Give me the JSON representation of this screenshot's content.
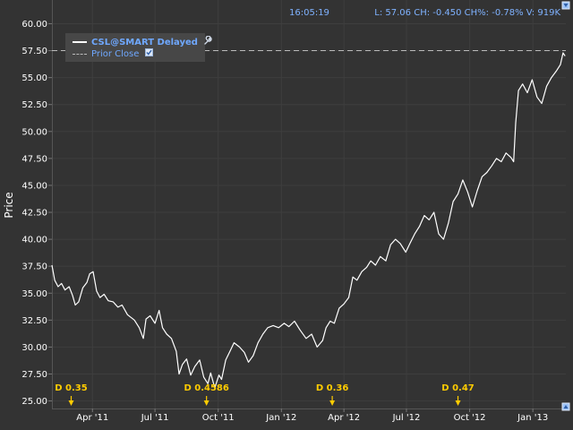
{
  "header": {
    "time": "16:05:19",
    "quote": "L: 57.06 CH: -0.450 CH%: -0.78% V: 919K"
  },
  "legend": {
    "series_label": "CSL@SMART Delayed",
    "prior_close_label": "Prior Close",
    "series_icon": "wrench-icon",
    "prior_close_icon": "checkbox-checked-icon"
  },
  "colors": {
    "background": "#333333",
    "grid": "#3e3e3e",
    "price_line": "#ffffff",
    "prior_close_line": "#bbbbbb",
    "dividend_marker": "#ffcc00",
    "header_text": "#7fb2ff"
  },
  "chart_data": {
    "type": "line",
    "ylabel": "Price",
    "xlabel": "",
    "ylim": [
      24.3,
      62.2
    ],
    "yticks": [
      25.0,
      27.5,
      30.0,
      32.5,
      35.0,
      37.5,
      40.0,
      42.5,
      45.0,
      47.5,
      50.0,
      52.5,
      55.0,
      57.5,
      60.0
    ],
    "x_range": [
      "2011-02-01",
      "2013-02-18"
    ],
    "x_ticks": [
      {
        "date": "2011-04-01",
        "label": "Apr '11"
      },
      {
        "date": "2011-07-01",
        "label": "Jul '11"
      },
      {
        "date": "2011-10-01",
        "label": "Oct '11"
      },
      {
        "date": "2012-01-01",
        "label": "Jan '12"
      },
      {
        "date": "2012-04-01",
        "label": "Apr '12"
      },
      {
        "date": "2012-07-01",
        "label": "Jul '12"
      },
      {
        "date": "2012-10-01",
        "label": "Oct '12"
      },
      {
        "date": "2013-01-01",
        "label": "Jan '13"
      }
    ],
    "prior_close": 57.5,
    "grid": true,
    "legend_position": "top-left",
    "series": [
      {
        "name": "CSL@SMART Delayed",
        "points": [
          [
            "2011-02-01",
            37.6
          ],
          [
            "2011-02-05",
            36.2
          ],
          [
            "2011-02-10",
            35.6
          ],
          [
            "2011-02-15",
            35.9
          ],
          [
            "2011-02-20",
            35.3
          ],
          [
            "2011-02-26",
            35.6
          ],
          [
            "2011-03-03",
            34.8
          ],
          [
            "2011-03-07",
            33.9
          ],
          [
            "2011-03-12",
            34.2
          ],
          [
            "2011-03-18",
            35.5
          ],
          [
            "2011-03-24",
            36.0
          ],
          [
            "2011-03-28",
            36.8
          ],
          [
            "2011-04-02",
            37.0
          ],
          [
            "2011-04-07",
            35.2
          ],
          [
            "2011-04-12",
            34.6
          ],
          [
            "2011-04-18",
            34.9
          ],
          [
            "2011-04-24",
            34.3
          ],
          [
            "2011-05-01",
            34.2
          ],
          [
            "2011-05-08",
            33.7
          ],
          [
            "2011-05-14",
            33.9
          ],
          [
            "2011-05-22",
            33.0
          ],
          [
            "2011-06-01",
            32.5
          ],
          [
            "2011-06-08",
            31.8
          ],
          [
            "2011-06-14",
            30.8
          ],
          [
            "2011-06-18",
            32.6
          ],
          [
            "2011-06-24",
            32.9
          ],
          [
            "2011-07-01",
            32.2
          ],
          [
            "2011-07-07",
            33.4
          ],
          [
            "2011-07-12",
            31.8
          ],
          [
            "2011-07-18",
            31.2
          ],
          [
            "2011-07-25",
            30.8
          ],
          [
            "2011-08-01",
            29.6
          ],
          [
            "2011-08-05",
            27.5
          ],
          [
            "2011-08-10",
            28.4
          ],
          [
            "2011-08-16",
            28.9
          ],
          [
            "2011-08-22",
            27.4
          ],
          [
            "2011-08-28",
            28.2
          ],
          [
            "2011-09-04",
            28.8
          ],
          [
            "2011-09-10",
            27.2
          ],
          [
            "2011-09-16",
            26.6
          ],
          [
            "2011-09-20",
            27.6
          ],
          [
            "2011-09-26",
            26.2
          ],
          [
            "2011-10-02",
            27.4
          ],
          [
            "2011-10-06",
            27.0
          ],
          [
            "2011-10-12",
            28.8
          ],
          [
            "2011-10-18",
            29.6
          ],
          [
            "2011-10-24",
            30.4
          ],
          [
            "2011-11-01",
            30.0
          ],
          [
            "2011-11-08",
            29.5
          ],
          [
            "2011-11-14",
            28.6
          ],
          [
            "2011-11-21",
            29.2
          ],
          [
            "2011-11-28",
            30.4
          ],
          [
            "2011-12-05",
            31.2
          ],
          [
            "2011-12-12",
            31.8
          ],
          [
            "2011-12-20",
            32.0
          ],
          [
            "2011-12-28",
            31.8
          ],
          [
            "2012-01-05",
            32.2
          ],
          [
            "2012-01-12",
            31.9
          ],
          [
            "2012-01-20",
            32.4
          ],
          [
            "2012-01-28",
            31.6
          ],
          [
            "2012-02-06",
            30.8
          ],
          [
            "2012-02-14",
            31.2
          ],
          [
            "2012-02-22",
            30.0
          ],
          [
            "2012-03-01",
            30.6
          ],
          [
            "2012-03-06",
            31.8
          ],
          [
            "2012-03-12",
            32.4
          ],
          [
            "2012-03-18",
            32.2
          ],
          [
            "2012-03-25",
            33.6
          ],
          [
            "2012-04-01",
            34.0
          ],
          [
            "2012-04-08",
            34.6
          ],
          [
            "2012-04-14",
            36.5
          ],
          [
            "2012-04-20",
            36.2
          ],
          [
            "2012-04-27",
            37.0
          ],
          [
            "2012-05-04",
            37.4
          ],
          [
            "2012-05-10",
            38.0
          ],
          [
            "2012-05-17",
            37.6
          ],
          [
            "2012-05-24",
            38.4
          ],
          [
            "2012-06-01",
            38.0
          ],
          [
            "2012-06-08",
            39.5
          ],
          [
            "2012-06-15",
            40.0
          ],
          [
            "2012-06-22",
            39.6
          ],
          [
            "2012-06-30",
            38.8
          ],
          [
            "2012-07-06",
            39.6
          ],
          [
            "2012-07-13",
            40.5
          ],
          [
            "2012-07-20",
            41.2
          ],
          [
            "2012-07-27",
            42.2
          ],
          [
            "2012-08-03",
            41.8
          ],
          [
            "2012-08-10",
            42.5
          ],
          [
            "2012-08-17",
            40.5
          ],
          [
            "2012-08-24",
            40.0
          ],
          [
            "2012-08-31",
            41.5
          ],
          [
            "2012-09-07",
            43.5
          ],
          [
            "2012-09-14",
            44.2
          ],
          [
            "2012-09-21",
            45.5
          ],
          [
            "2012-09-28",
            44.4
          ],
          [
            "2012-10-05",
            43.0
          ],
          [
            "2012-10-12",
            44.5
          ],
          [
            "2012-10-19",
            45.8
          ],
          [
            "2012-10-26",
            46.2
          ],
          [
            "2012-11-02",
            46.8
          ],
          [
            "2012-11-09",
            47.5
          ],
          [
            "2012-11-16",
            47.2
          ],
          [
            "2012-11-23",
            48.0
          ],
          [
            "2012-11-30",
            47.6
          ],
          [
            "2012-12-04",
            47.2
          ],
          [
            "2012-12-07",
            50.8
          ],
          [
            "2012-12-11",
            53.8
          ],
          [
            "2012-12-17",
            54.4
          ],
          [
            "2012-12-24",
            53.6
          ],
          [
            "2012-12-31",
            54.8
          ],
          [
            "2013-01-07",
            53.2
          ],
          [
            "2013-01-14",
            52.6
          ],
          [
            "2013-01-21",
            54.2
          ],
          [
            "2013-01-28",
            55.0
          ],
          [
            "2013-02-04",
            55.6
          ],
          [
            "2013-02-10",
            56.2
          ],
          [
            "2013-02-14",
            57.3
          ],
          [
            "2013-02-17",
            57.0
          ]
        ]
      }
    ],
    "dividends": [
      {
        "date": "2011-03-01",
        "label": "D 0.35"
      },
      {
        "date": "2011-09-14",
        "label": "D 0.4586"
      },
      {
        "date": "2012-03-15",
        "label": "D 0.36"
      },
      {
        "date": "2012-09-14",
        "label": "D 0.47"
      }
    ]
  }
}
